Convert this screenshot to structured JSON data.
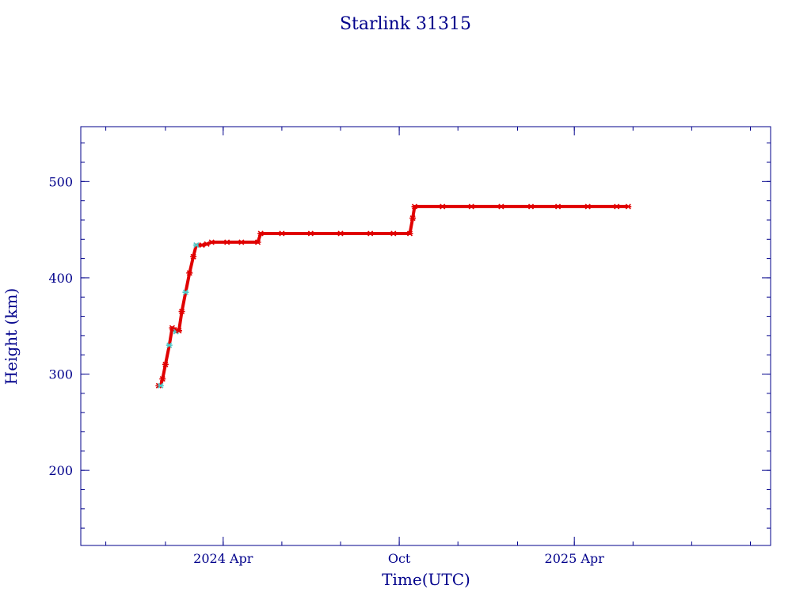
{
  "chart_data": {
    "type": "scatter",
    "title": "Starlink 31315",
    "xlabel": "Time(UTC)",
    "ylabel": "Height (km)",
    "x_ticks": [
      {
        "date": "2024-04-01",
        "label": "2024 Apr"
      },
      {
        "date": "2024-10-01",
        "label": "Oct"
      },
      {
        "date": "2025-04-01",
        "label": "2025 Apr"
      }
    ],
    "y_ticks": [
      200,
      300,
      400,
      500
    ],
    "xlim": [
      "2023-11-05",
      "2025-10-22"
    ],
    "ylim": [
      122,
      557
    ],
    "grid": false,
    "colors": {
      "frame": "#00008b",
      "points": "#e00000",
      "early_points": "#4fc9c9"
    },
    "series": [
      {
        "values": [
          {
            "date": "2024-01-25",
            "height": 288
          },
          {
            "date": "2024-01-27",
            "height": 288
          },
          {
            "date": "2024-01-29",
            "height": 295
          },
          {
            "date": "2024-02-01",
            "height": 310
          },
          {
            "date": "2024-02-05",
            "height": 330
          },
          {
            "date": "2024-02-08",
            "height": 348
          },
          {
            "date": "2024-02-10",
            "height": 346
          },
          {
            "date": "2024-02-12",
            "height": 344
          },
          {
            "date": "2024-02-15",
            "height": 345
          },
          {
            "date": "2024-02-18",
            "height": 365
          },
          {
            "date": "2024-02-22",
            "height": 385
          },
          {
            "date": "2024-02-26",
            "height": 405
          },
          {
            "date": "2024-03-01",
            "height": 422
          },
          {
            "date": "2024-03-04",
            "height": 434
          },
          {
            "date": "2024-03-10",
            "height": 434
          },
          {
            "date": "2024-03-15",
            "height": 435
          },
          {
            "date": "2024-03-20",
            "height": 437
          },
          {
            "date": "2024-04-05",
            "height": 437
          },
          {
            "date": "2024-04-20",
            "height": 437
          },
          {
            "date": "2024-05-07",
            "height": 437
          },
          {
            "date": "2024-05-10",
            "height": 446
          },
          {
            "date": "2024-06-01",
            "height": 446
          },
          {
            "date": "2024-07-01",
            "height": 446
          },
          {
            "date": "2024-08-01",
            "height": 446
          },
          {
            "date": "2024-09-01",
            "height": 446
          },
          {
            "date": "2024-09-25",
            "height": 446
          },
          {
            "date": "2024-10-12",
            "height": 446
          },
          {
            "date": "2024-10-15",
            "height": 462
          },
          {
            "date": "2024-10-17",
            "height": 474
          },
          {
            "date": "2024-11-15",
            "height": 474
          },
          {
            "date": "2024-12-15",
            "height": 474
          },
          {
            "date": "2025-01-15",
            "height": 474
          },
          {
            "date": "2025-02-15",
            "height": 474
          },
          {
            "date": "2025-03-15",
            "height": 474
          },
          {
            "date": "2025-04-15",
            "height": 474
          },
          {
            "date": "2025-05-15",
            "height": 474
          },
          {
            "date": "2025-05-27",
            "height": 474
          }
        ]
      }
    ]
  }
}
